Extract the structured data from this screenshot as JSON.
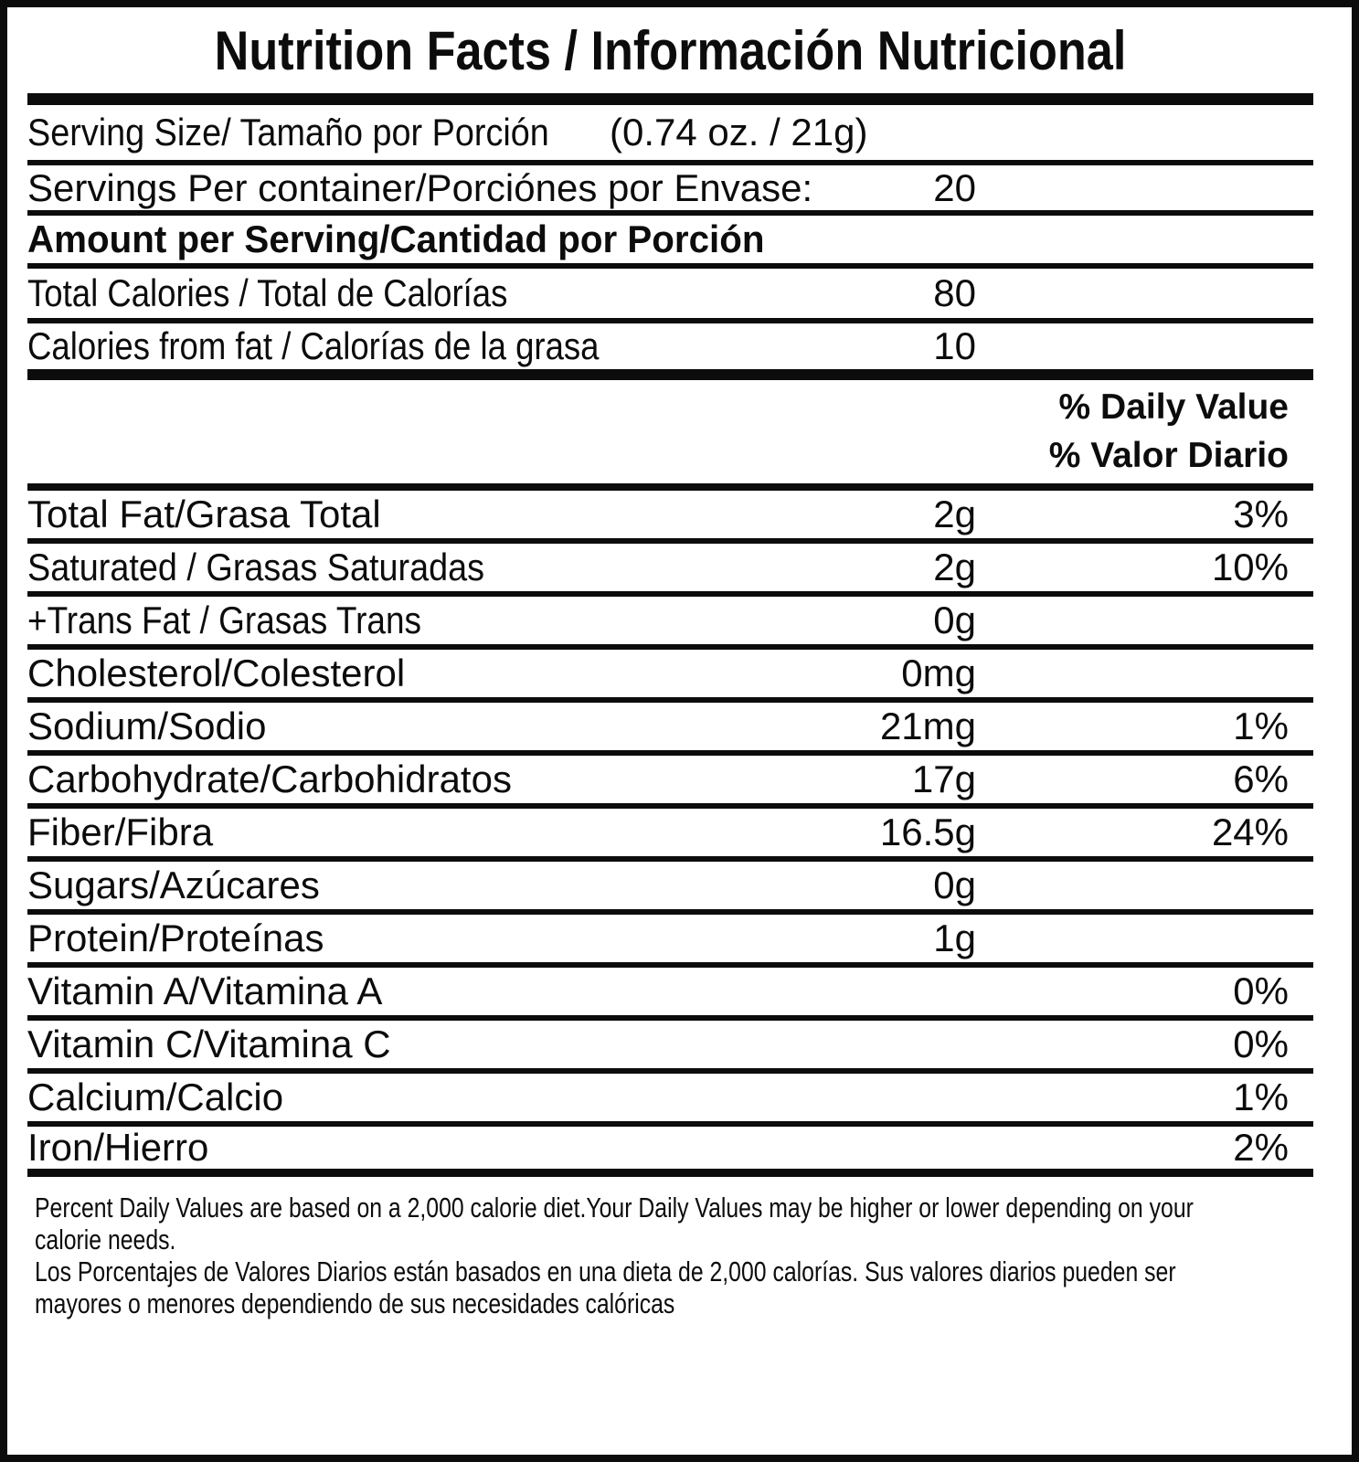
{
  "title": "Nutrition Facts / Información Nutricional",
  "serving_size": {
    "label": "Serving Size/ Tamaño por Porción",
    "value": "(0.74 oz. / 21g)"
  },
  "servings_per_container": {
    "label": "Servings Per container/Porciónes por Envase:",
    "value": "20"
  },
  "amount_per_serving_heading": "Amount per Serving/Cantidad por Porción",
  "calories": [
    {
      "label": "Total Calories / Total de Calorías",
      "amount": "80"
    },
    {
      "label": "Calories from fat / Calorías de la grasa",
      "amount": "10"
    }
  ],
  "daily_value_heading": {
    "en": "% Daily Value",
    "es": "% Valor Diario"
  },
  "nutrients": [
    {
      "label": "Total Fat/Grasa Total",
      "amount": "2g",
      "daily_value": "3%"
    },
    {
      "label": "Saturated / Grasas Saturadas",
      "amount": "2g",
      "daily_value": "10%"
    },
    {
      "label": "+Trans Fat / Grasas Trans",
      "amount": "0g",
      "daily_value": ""
    },
    {
      "label": "Cholesterol/Colesterol",
      "amount": "0mg",
      "daily_value": ""
    },
    {
      "label": "Sodium/Sodio",
      "amount": "21mg",
      "daily_value": "1%"
    },
    {
      "label": "Carbohydrate/Carbohidratos",
      "amount": "17g",
      "daily_value": "6%"
    },
    {
      "label": "Fiber/Fibra",
      "amount": "16.5g",
      "daily_value": "24%"
    },
    {
      "label": "Sugars/Azúcares",
      "amount": "0g",
      "daily_value": ""
    },
    {
      "label": "Protein/Proteínas",
      "amount": "1g",
      "daily_value": ""
    },
    {
      "label": "Vitamin A/Vitamina A",
      "amount": "",
      "daily_value": "0%"
    },
    {
      "label": "Vitamin C/Vitamina C",
      "amount": "",
      "daily_value": "0%"
    },
    {
      "label": "Calcium/Calcio",
      "amount": "",
      "daily_value": "1%"
    },
    {
      "label": "Iron/Hierro",
      "amount": "",
      "daily_value": "2%"
    }
  ],
  "footnotes": {
    "en": [
      "Percent Daily Values are based on a 2,000 calorie diet.Your Daily Values may be higher or lower depending on your",
      "calorie needs."
    ],
    "es": [
      "Los Porcentajes de Valores Diarios están basados en una dieta de 2,000 calorías. Sus valores diarios pueden ser",
      "mayores o menores dependiendo de sus necesidades calóricas"
    ]
  },
  "colors": {
    "ink": "#0c0c0c",
    "background": "#ffffff"
  }
}
